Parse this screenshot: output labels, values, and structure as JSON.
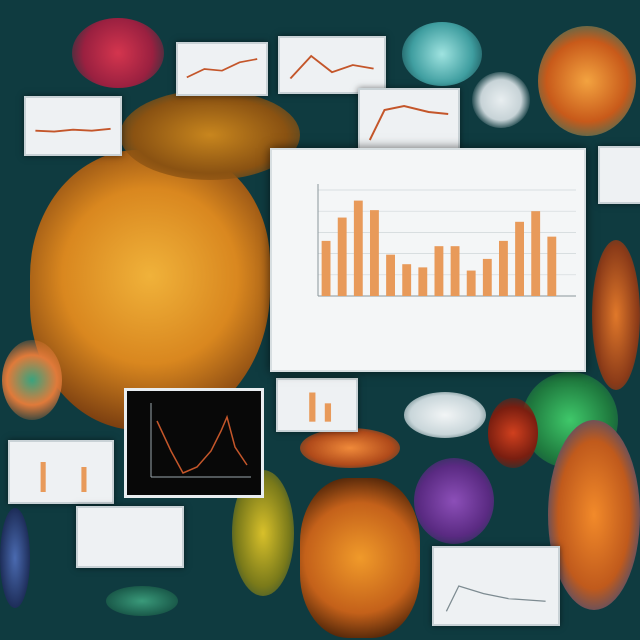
{
  "scene": {
    "description_free": true
  },
  "chart_data": {
    "type": "bar",
    "title": "",
    "xlabel": "",
    "ylabel": "",
    "ylim": [
      0,
      100
    ],
    "categories": [
      "",
      "",
      "",
      "",
      "",
      "",
      "",
      "",
      "",
      "",
      "",
      "",
      "",
      "",
      "",
      ""
    ],
    "values": [
      52,
      74,
      90,
      81,
      39,
      30,
      27,
      47,
      47,
      24,
      35,
      52,
      70,
      80,
      56,
      0
    ],
    "colors": {
      "bar": "#e89a5a",
      "panel": "#f4f6f7",
      "grid": "#cfd6d9",
      "axis": "#8a969b"
    }
  },
  "colors": {
    "background": "#0f3b40",
    "coral_orange": "#e39a2c",
    "coral_dark": "#8a4a12",
    "card": "#eef1f3",
    "dark_panel_line": "#c4562a"
  }
}
